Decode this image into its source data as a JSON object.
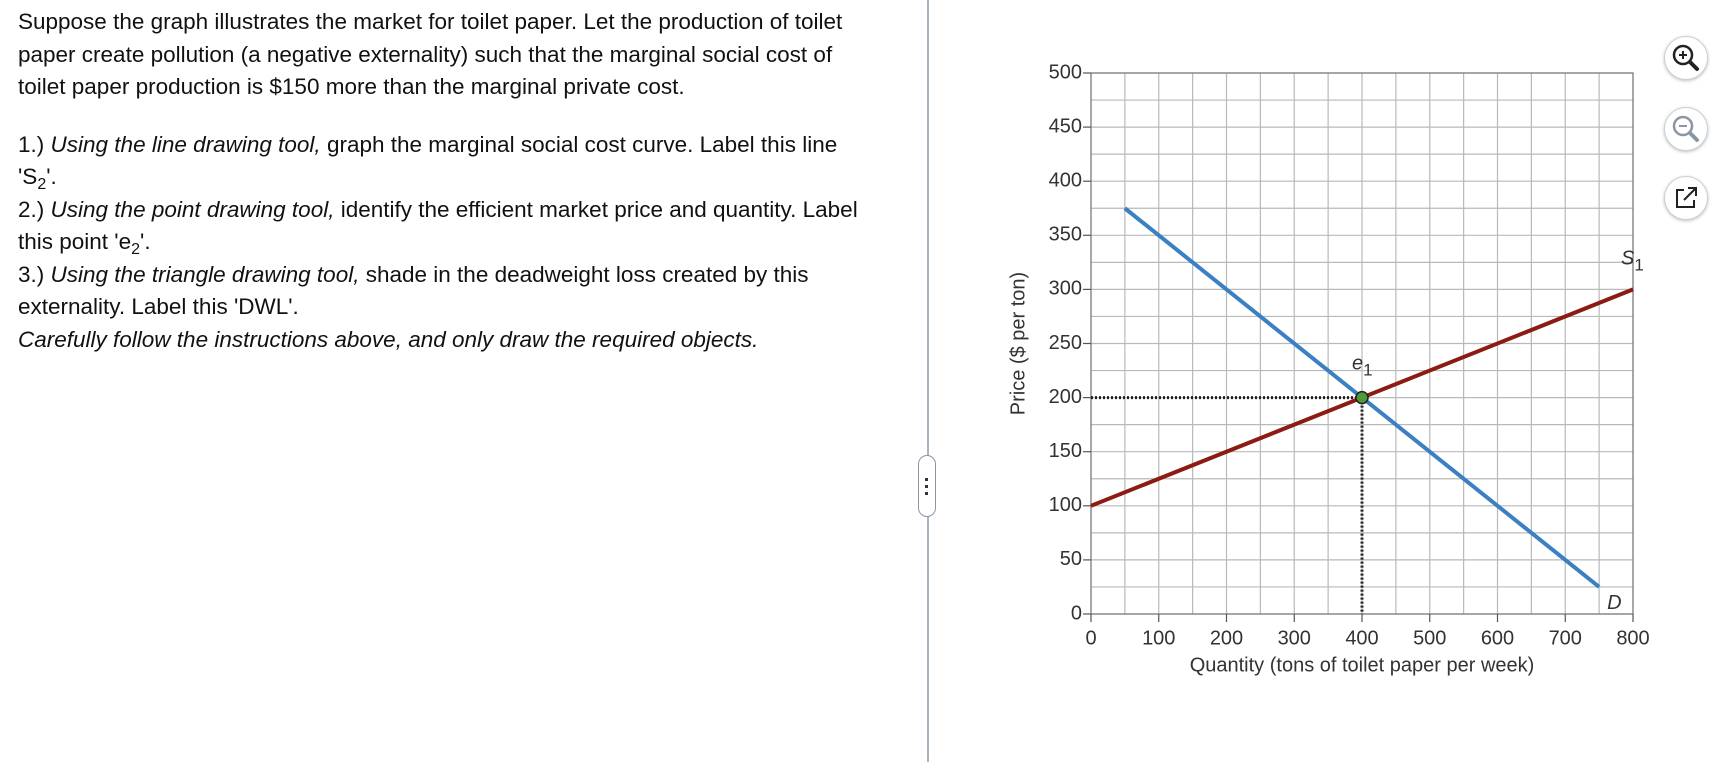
{
  "instructions": {
    "intro": "Suppose the graph illustrates the market for toilet paper.  Let the production of toilet paper create pollution (a negative externality) such that the marginal social cost of toilet paper production is $150 more than the marginal private cost.",
    "steps": [
      {
        "number": "1.)",
        "tool": "Using the line drawing tool,",
        "text": "graph the marginal social cost curve. Label this line 'S",
        "sub": "2",
        "end": "'."
      },
      {
        "number": "2.)",
        "tool": "Using the point drawing tool,",
        "text": "identify the efficient market price and quantity. Label this point 'e",
        "sub": "2",
        "end": "'."
      },
      {
        "number": "3.)",
        "tool": "Using the triangle drawing tool,",
        "text": "shade in the deadweight loss created by this externality. Label this 'DWL'."
      }
    ],
    "note": "Carefully follow the instructions above, and only draw the required objects."
  },
  "chart_data": {
    "type": "line",
    "x_label": "Quantity (tons of toilet paper per week)",
    "y_label": "Price ($ per ton)",
    "xlim": [
      0,
      800
    ],
    "ylim": [
      0,
      500
    ],
    "xticks": [
      0,
      100,
      200,
      300,
      400,
      500,
      600,
      700,
      800
    ],
    "yticks": [
      0,
      50,
      100,
      150,
      200,
      250,
      300,
      350,
      400,
      450,
      500
    ],
    "xgrid": [
      0,
      50,
      100,
      150,
      200,
      250,
      300,
      350,
      400,
      450,
      500,
      550,
      600,
      650,
      700,
      750,
      800
    ],
    "ygrid": [
      0,
      25,
      50,
      75,
      100,
      125,
      150,
      175,
      200,
      225,
      250,
      275,
      300,
      325,
      350,
      375,
      400,
      425,
      450,
      475,
      500
    ],
    "series": [
      {
        "name": "D",
        "color": "#3a80c3",
        "x": [
          50,
          750
        ],
        "values": [
          375,
          25
        ]
      },
      {
        "name": "S",
        "name_sub": "1",
        "color": "#8c1b12",
        "x": [
          0,
          800
        ],
        "values": [
          100,
          300
        ]
      }
    ],
    "points": [
      {
        "name": "e",
        "name_sub": "1",
        "x": 400,
        "y": 200,
        "color": "#4c9a3a"
      }
    ]
  }
}
